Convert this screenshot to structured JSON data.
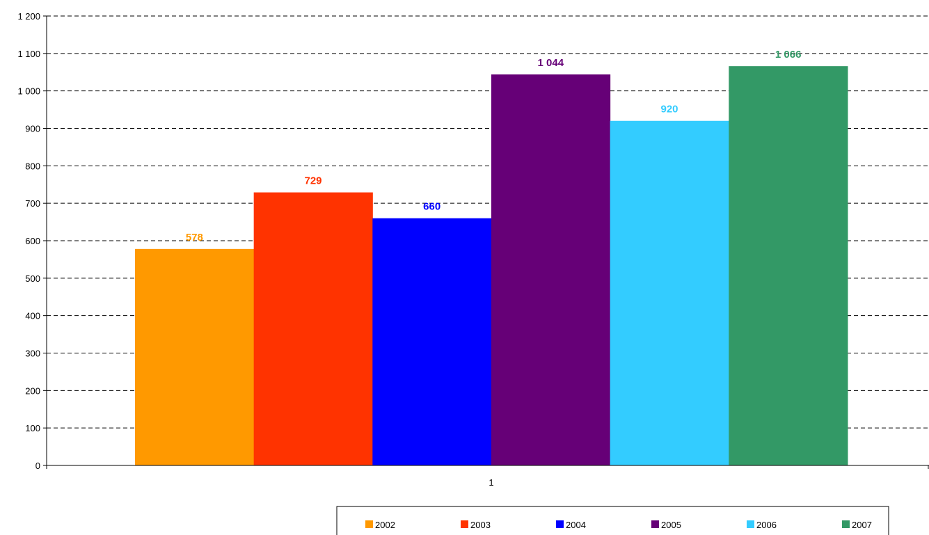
{
  "chart_data": {
    "type": "bar",
    "categories": [
      "1"
    ],
    "series": [
      {
        "name": "2002",
        "values": [
          578
        ],
        "value_label": "578",
        "color": "#FF9900"
      },
      {
        "name": "2003",
        "values": [
          729
        ],
        "value_label": "729",
        "color": "#FF3300"
      },
      {
        "name": "2004",
        "values": [
          660
        ],
        "value_label": "660",
        "color": "#0000FF"
      },
      {
        "name": "2005",
        "values": [
          1044
        ],
        "value_label": "1 044",
        "color": "#660077"
      },
      {
        "name": "2006",
        "values": [
          920
        ],
        "value_label": "920",
        "color": "#33CCFF"
      },
      {
        "name": "2007",
        "values": [
          1066
        ],
        "value_label": "1 066",
        "color": "#339966"
      }
    ],
    "y_ticks": [
      {
        "value": 0,
        "label": "0"
      },
      {
        "value": 100,
        "label": "100"
      },
      {
        "value": 200,
        "label": "200"
      },
      {
        "value": 300,
        "label": "300"
      },
      {
        "value": 400,
        "label": "400"
      },
      {
        "value": 500,
        "label": "500"
      },
      {
        "value": 600,
        "label": "600"
      },
      {
        "value": 700,
        "label": "700"
      },
      {
        "value": 800,
        "label": "800"
      },
      {
        "value": 900,
        "label": "900"
      },
      {
        "value": 1000,
        "label": "1 000"
      },
      {
        "value": 1100,
        "label": "1 100"
      },
      {
        "value": 1200,
        "label": "1 200"
      }
    ],
    "ylim": [
      0,
      1200
    ],
    "grid": "horizontal-dashed",
    "legend_position": "bottom"
  }
}
